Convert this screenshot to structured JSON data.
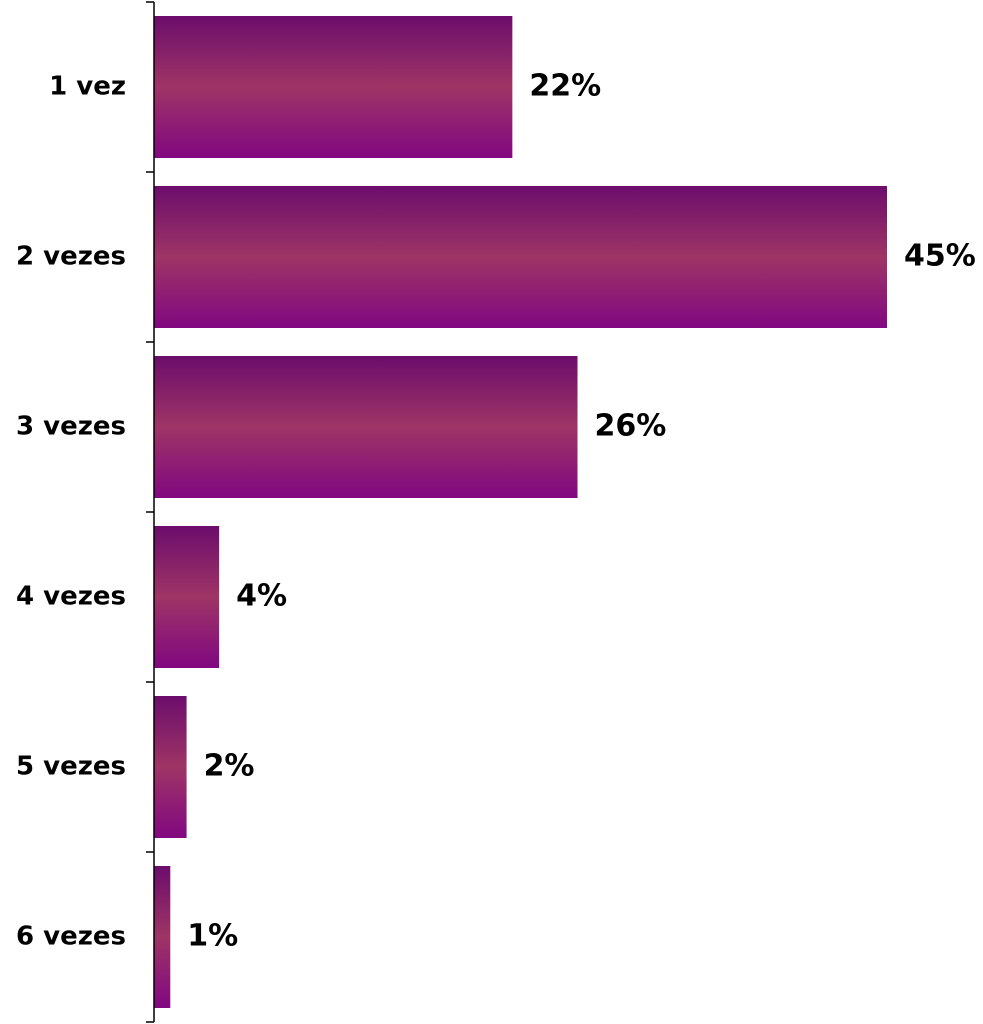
{
  "chart_data": {
    "type": "bar",
    "orientation": "horizontal",
    "categories": [
      "1 vez",
      "2 vezes",
      "3 vezes",
      "4 vezes",
      "5 vezes",
      "6 vezes"
    ],
    "values": [
      22,
      45,
      26,
      4,
      2,
      1
    ],
    "value_labels": [
      "22%",
      "45%",
      "26%",
      "4%",
      "2%",
      "1%"
    ],
    "unit": "%",
    "title": "",
    "xlabel": "",
    "ylabel": "",
    "xlim": [
      0,
      45
    ],
    "grid": false,
    "legend": "none",
    "bar_colors": {
      "edge": "#810881",
      "middle": "#9e3565",
      "top": "#6c0d6c"
    },
    "axis_color": "#000000"
  }
}
